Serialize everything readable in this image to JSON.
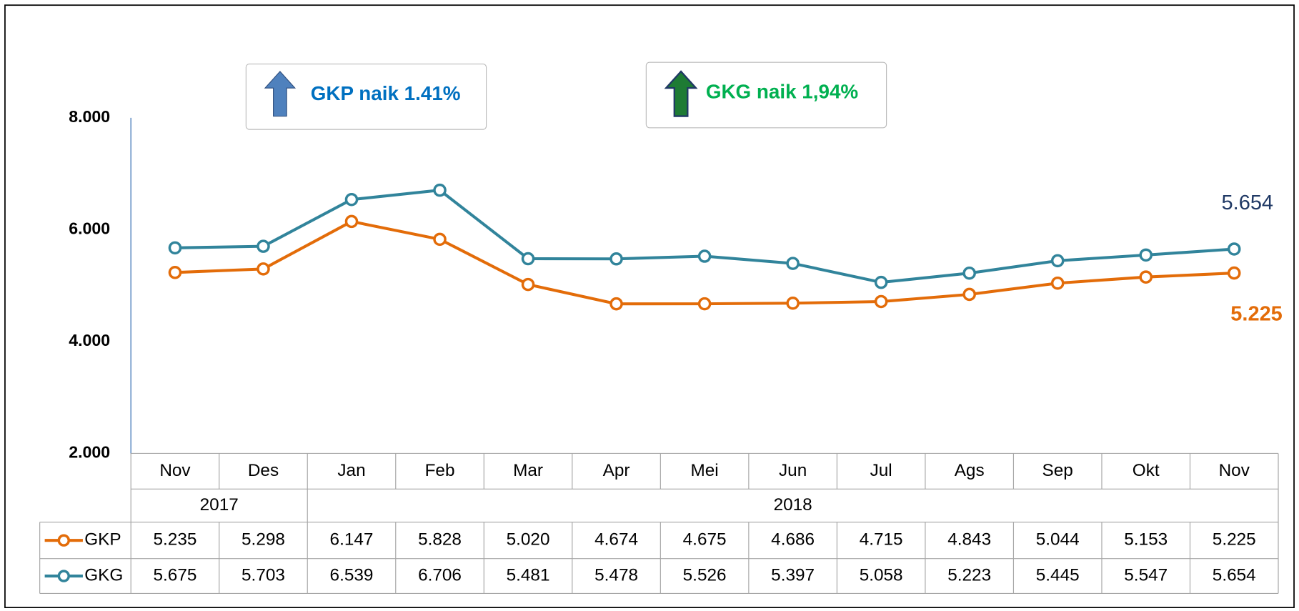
{
  "chart_data": {
    "type": "line",
    "categories": [
      "Nov",
      "Des",
      "Jan",
      "Feb",
      "Mar",
      "Apr",
      "Mei",
      "Jun",
      "Jul",
      "Ags",
      "Sep",
      "Okt",
      "Nov"
    ],
    "x_groups": [
      {
        "label": "2017",
        "span": 2
      },
      {
        "label": "2018",
        "span": 11
      }
    ],
    "series": [
      {
        "name": "GKP",
        "color": "#e36c09",
        "values": [
          5235,
          5298,
          6147,
          5828,
          5020,
          4674,
          4675,
          4686,
          4715,
          4843,
          5044,
          5153,
          5225
        ],
        "value_labels": [
          "5.235",
          "5.298",
          "6.147",
          "5.828",
          "5.020",
          "4.674",
          "4.675",
          "4.686",
          "4.715",
          "4.843",
          "5.044",
          "5.153",
          "5.225"
        ]
      },
      {
        "name": "GKG",
        "color": "#31849b",
        "values": [
          5675,
          5703,
          6539,
          6706,
          5481,
          5478,
          5526,
          5397,
          5058,
          5223,
          5445,
          5547,
          5654
        ],
        "value_labels": [
          "5.675",
          "5.703",
          "6.539",
          "6.706",
          "5.481",
          "5.478",
          "5.526",
          "5.397",
          "5.058",
          "5.223",
          "5.445",
          "5.547",
          "5.654"
        ]
      }
    ],
    "ylim": [
      2000,
      8000
    ],
    "yticks": [
      {
        "value": 2000,
        "label": "2.000"
      },
      {
        "value": 4000,
        "label": "4.000"
      },
      {
        "value": 6000,
        "label": "6.000"
      },
      {
        "value": 8000,
        "label": "8.000"
      }
    ],
    "annotations": [
      {
        "text": "GKP naik 1.41%",
        "color": "#0070c0"
      },
      {
        "text": "GKG naik 1,94%",
        "color": "#00b050"
      }
    ],
    "grid": false
  }
}
